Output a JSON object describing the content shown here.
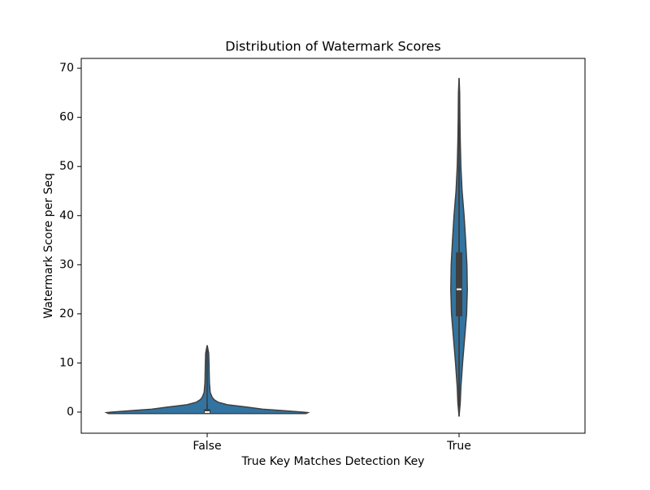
{
  "chart_data": {
    "type": "violin",
    "title": "Distribution of Watermark Scores",
    "x_label": "True Key Matches Detection Key",
    "y_label": "Watermark Score per Seq",
    "categories": [
      "False",
      "True"
    ],
    "color": "#3274a1",
    "edge_color": "#3f3f3f",
    "ylim": [
      -4.3,
      72
    ],
    "yticks": [
      0,
      10,
      20,
      30,
      40,
      50,
      60,
      70
    ],
    "violins": [
      {
        "density_y": [
          -0.3,
          -0.1,
          0,
          0.3,
          0.6,
          1,
          1.5,
          2,
          2.5,
          3,
          4,
          6,
          8,
          10,
          12,
          13.6
        ],
        "density": [
          0.98,
          1.0,
          0.95,
          0.75,
          0.55,
          0.4,
          0.2,
          0.11,
          0.07,
          0.05,
          0.03,
          0.022,
          0.02,
          0.018,
          0.015,
          0
        ],
        "whisker_low": -0.3,
        "q1": -0.3,
        "median": 0,
        "q3": 0.6,
        "whisker_high": 1.6
      },
      {
        "density_y": [
          -0.9,
          2,
          5,
          10,
          15,
          20,
          25,
          30,
          35,
          40,
          45,
          50,
          55,
          60,
          65,
          68
        ],
        "density": [
          0,
          0.012,
          0.018,
          0.035,
          0.055,
          0.075,
          0.082,
          0.078,
          0.065,
          0.05,
          0.03,
          0.018,
          0.012,
          0.008,
          0.006,
          0
        ],
        "whisker_low": 1.5,
        "q1": 19.5,
        "median": 25,
        "q3": 32.5,
        "whisker_high": 50
      }
    ]
  }
}
